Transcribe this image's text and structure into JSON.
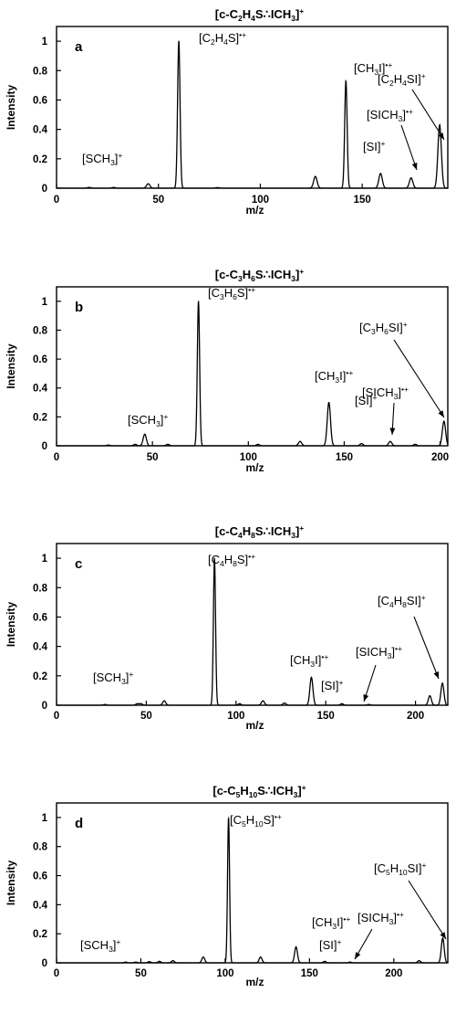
{
  "chart_data": [
    {
      "type": "line",
      "panel_label": "a",
      "title": "[c-C2H4S∴ICH3]+",
      "xlabel": "m/z",
      "ylabel": "Intensity",
      "xlim": [
        0,
        192
      ],
      "ylim": [
        0,
        1.1
      ],
      "xticks": [
        0,
        50,
        100,
        150
      ],
      "yticks": [
        0,
        0.2,
        0.4,
        0.6,
        0.8,
        1
      ],
      "series": [
        {
          "peaks": [
            {
              "x": 16,
              "y": 0.005
            },
            {
              "x": 28,
              "y": 0.005
            },
            {
              "x": 45,
              "y": 0.03
            },
            {
              "x": 60,
              "y": 1.0
            },
            {
              "x": 79,
              "y": 0.004
            },
            {
              "x": 127,
              "y": 0.08
            },
            {
              "x": 142,
              "y": 0.73
            },
            {
              "x": 159,
              "y": 0.1
            },
            {
              "x": 174,
              "y": 0.07
            },
            {
              "x": 188,
              "y": 0.43
            }
          ]
        }
      ],
      "annotations": [
        {
          "label": "[SCH3]+",
          "x": 45,
          "y": 0.03
        },
        {
          "label": "[C2H4S]•+",
          "x": 60,
          "y": 1.0
        },
        {
          "label": "[CH3I]•+",
          "x": 142,
          "y": 0.73
        },
        {
          "label": "[SI]+",
          "x": 159,
          "y": 0.1
        },
        {
          "label": "[SICH3]•+",
          "x": 174,
          "y": 0.07
        },
        {
          "label": "[C2H4SI]+",
          "x": 188,
          "y": 0.43
        }
      ]
    },
    {
      "type": "line",
      "panel_label": "b",
      "title": "[c-C3H6S∴ICH3]+",
      "xlabel": "m/z",
      "ylabel": "Intensity",
      "xlim": [
        0,
        204
      ],
      "ylim": [
        0,
        1.1
      ],
      "xticks": [
        0,
        50,
        100,
        150,
        200
      ],
      "yticks": [
        0,
        0.2,
        0.4,
        0.6,
        0.8,
        1
      ],
      "series": [
        {
          "peaks": [
            {
              "x": 27,
              "y": 0.005
            },
            {
              "x": 41,
              "y": 0.01
            },
            {
              "x": 46,
              "y": 0.08
            },
            {
              "x": 58,
              "y": 0.01
            },
            {
              "x": 74,
              "y": 1.0
            },
            {
              "x": 105,
              "y": 0.01
            },
            {
              "x": 127,
              "y": 0.03
            },
            {
              "x": 142,
              "y": 0.3
            },
            {
              "x": 159,
              "y": 0.015
            },
            {
              "x": 174,
              "y": 0.03
            },
            {
              "x": 187,
              "y": 0.01
            },
            {
              "x": 202,
              "y": 0.17
            }
          ]
        }
      ],
      "annotations": [
        {
          "label": "[SCH3]+",
          "x": 46,
          "y": 0.08
        },
        {
          "label": "[C3H6S]•+",
          "x": 74,
          "y": 1.0
        },
        {
          "label": "[CH3I]•+",
          "x": 142,
          "y": 0.3
        },
        {
          "label": "[SI]+",
          "x": 159,
          "y": 0.015
        },
        {
          "label": "[SICH3]•+",
          "x": 174,
          "y": 0.03
        },
        {
          "label": "[C3H6SI]+",
          "x": 202,
          "y": 0.17
        }
      ]
    },
    {
      "type": "line",
      "panel_label": "c",
      "title": "[c-C4H8S∴ICH3]+",
      "xlabel": "m/z",
      "ylabel": "Intensity",
      "xlim": [
        0,
        218
      ],
      "ylim": [
        0,
        1.1
      ],
      "xticks": [
        0,
        50,
        100,
        150,
        200
      ],
      "yticks": [
        0,
        0.2,
        0.4,
        0.6,
        0.8,
        1
      ],
      "series": [
        {
          "peaks": [
            {
              "x": 27,
              "y": 0.005
            },
            {
              "x": 45,
              "y": 0.01
            },
            {
              "x": 47,
              "y": 0.01
            },
            {
              "x": 60,
              "y": 0.03
            },
            {
              "x": 88,
              "y": 1.0
            },
            {
              "x": 102,
              "y": 0.01
            },
            {
              "x": 115,
              "y": 0.03
            },
            {
              "x": 127,
              "y": 0.015
            },
            {
              "x": 142,
              "y": 0.19
            },
            {
              "x": 159,
              "y": 0.01
            },
            {
              "x": 174,
              "y": 0.005
            },
            {
              "x": 208,
              "y": 0.065
            },
            {
              "x": 215,
              "y": 0.15
            }
          ]
        }
      ],
      "annotations": [
        {
          "label": "[SCH3]+",
          "x": 47,
          "y": 0.01
        },
        {
          "label": "[C4H8S]•+",
          "x": 88,
          "y": 1.0
        },
        {
          "label": "[CH3I]•+",
          "x": 142,
          "y": 0.19
        },
        {
          "label": "[SI]+",
          "x": 159,
          "y": 0.01
        },
        {
          "label": "[SICH3]•+",
          "x": 174,
          "y": 0.005
        },
        {
          "label": "[C4H8SI]+",
          "x": 215,
          "y": 0.15
        }
      ]
    },
    {
      "type": "line",
      "panel_label": "d",
      "title": "[c-C5H10S∴ICH3]+",
      "xlabel": "m/z",
      "ylabel": "Intensity",
      "xlim": [
        0,
        232
      ],
      "ylim": [
        0,
        1.1
      ],
      "xticks": [
        0,
        50,
        100,
        150,
        200
      ],
      "yticks": [
        0,
        0.2,
        0.4,
        0.6,
        0.8,
        1
      ],
      "series": [
        {
          "peaks": [
            {
              "x": 41,
              "y": 0.005
            },
            {
              "x": 47,
              "y": 0.005
            },
            {
              "x": 55,
              "y": 0.008
            },
            {
              "x": 61,
              "y": 0.01
            },
            {
              "x": 69,
              "y": 0.015
            },
            {
              "x": 87,
              "y": 0.04
            },
            {
              "x": 102,
              "y": 1.0
            },
            {
              "x": 121,
              "y": 0.04
            },
            {
              "x": 142,
              "y": 0.11
            },
            {
              "x": 159,
              "y": 0.01
            },
            {
              "x": 174,
              "y": 0.005
            },
            {
              "x": 215,
              "y": 0.015
            },
            {
              "x": 229,
              "y": 0.17
            }
          ]
        }
      ],
      "annotations": [
        {
          "label": "[SCH3]+",
          "x": 47,
          "y": 0.005
        },
        {
          "label": "[C5H10S]•+",
          "x": 102,
          "y": 1.0
        },
        {
          "label": "[CH3I]•+",
          "x": 142,
          "y": 0.11
        },
        {
          "label": "[SI]+",
          "x": 159,
          "y": 0.01
        },
        {
          "label": "[SICH3]•+",
          "x": 174,
          "y": 0.005
        },
        {
          "label": "[C5H10SI]+",
          "x": 229,
          "y": 0.17
        }
      ]
    }
  ]
}
